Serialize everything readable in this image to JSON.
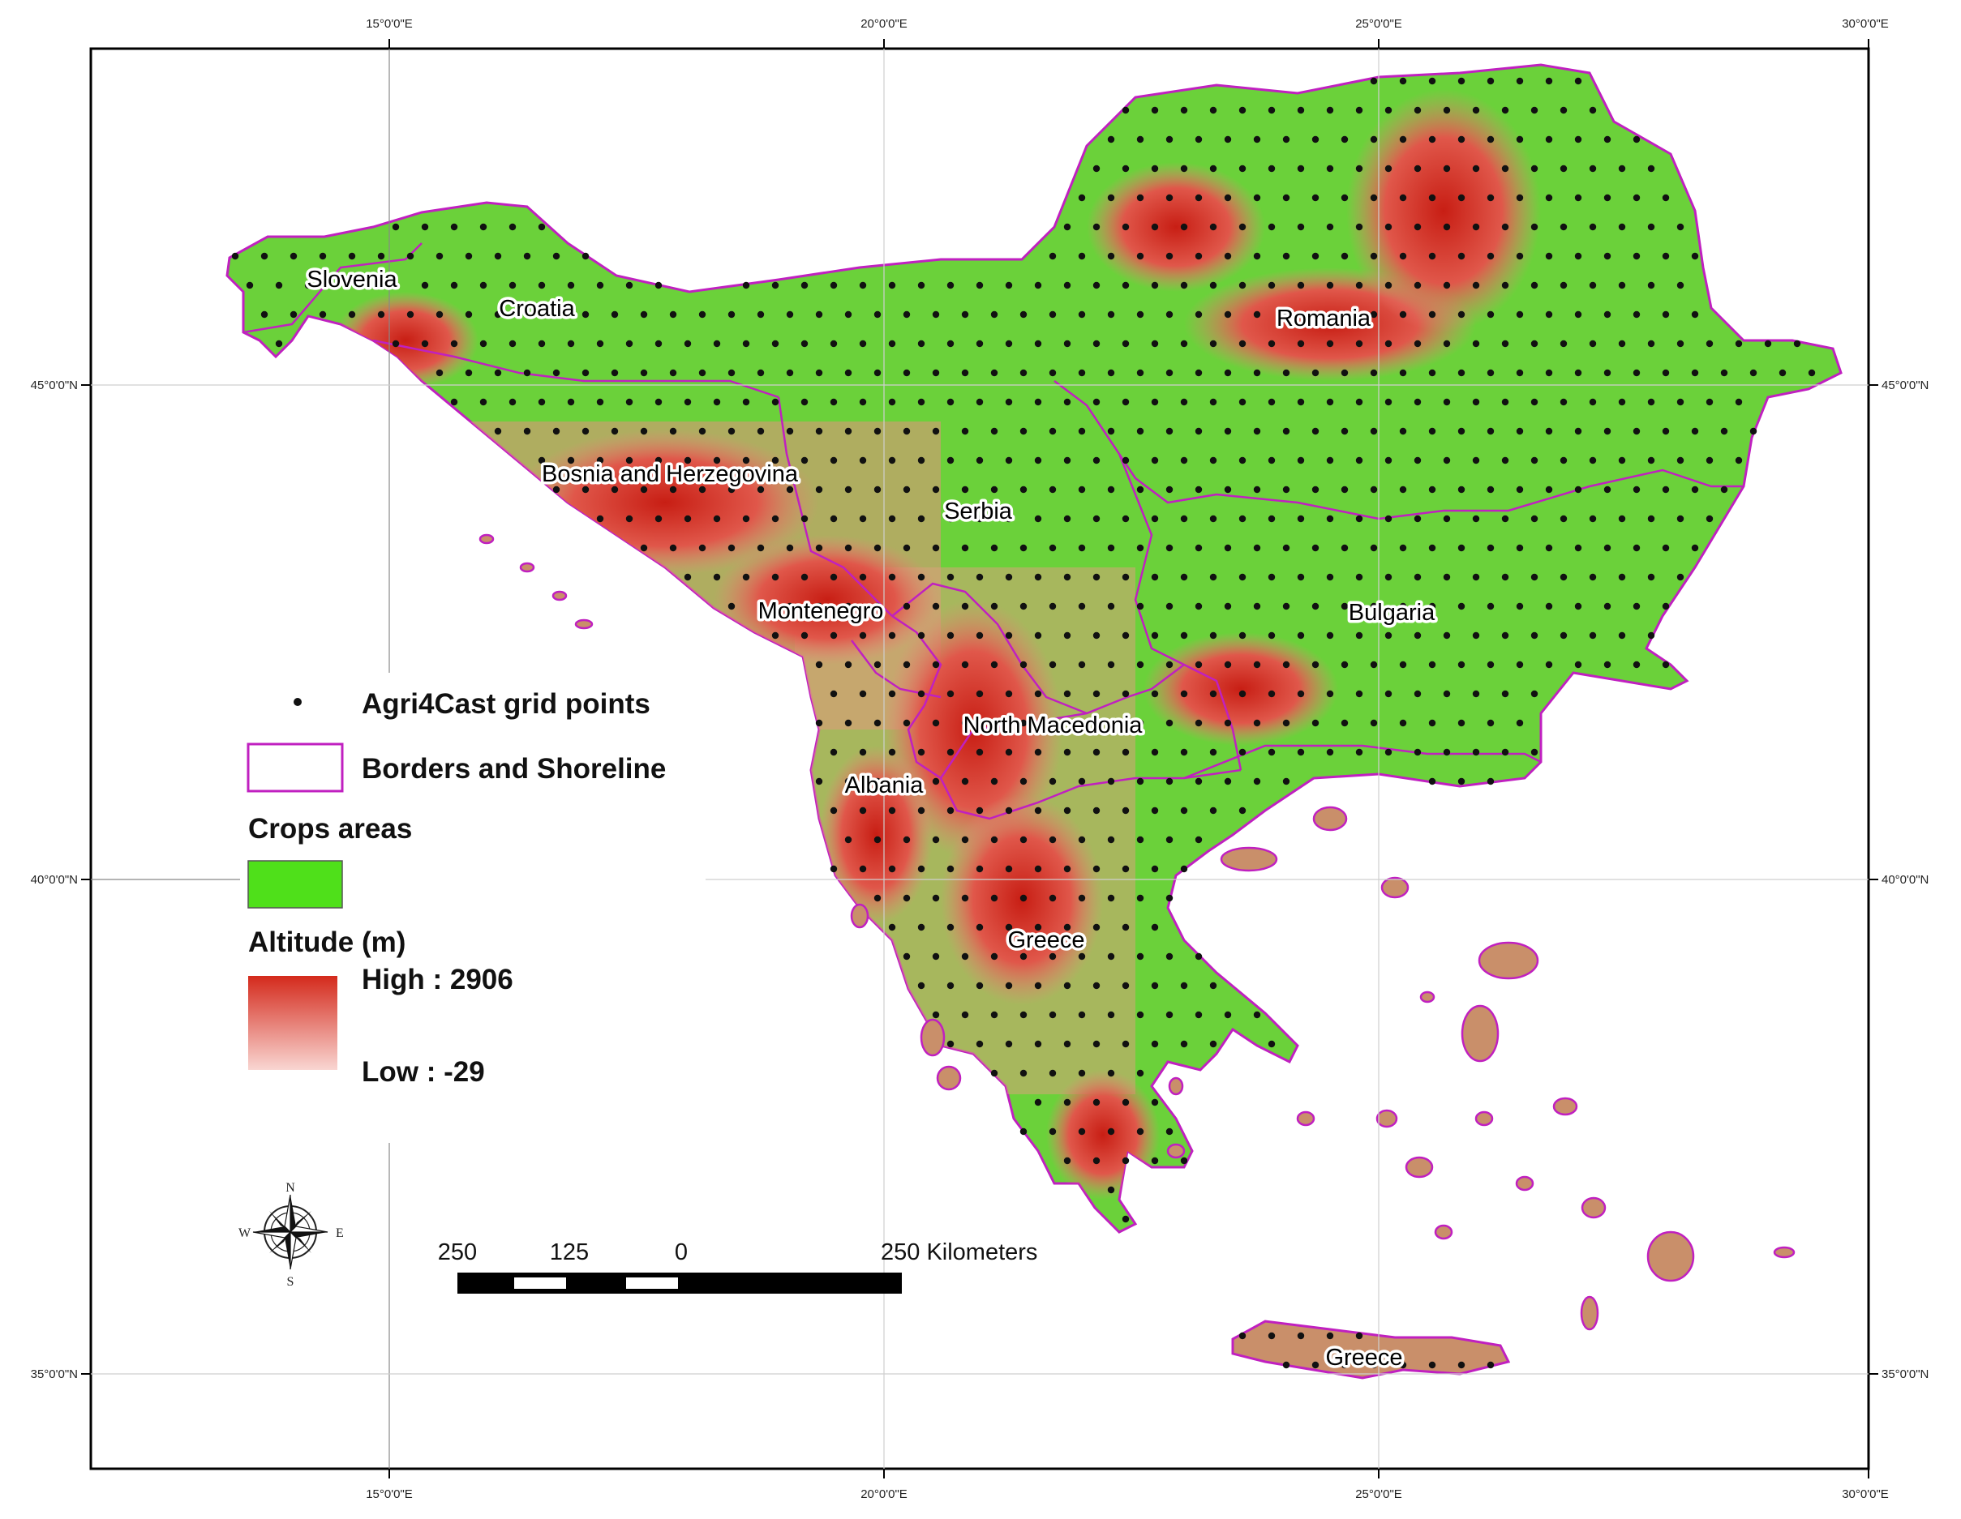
{
  "coordinates": {
    "top": [
      "15°0'0\"E",
      "20°0'0\"E",
      "25°0'0\"E",
      "30°0'0\"E"
    ],
    "bottom": [
      "15°0'0\"E",
      "20°0'0\"E",
      "25°0'0\"E",
      "30°0'0\"E"
    ],
    "left": [
      "45°0'0\"N",
      "40°0'0\"N",
      "35°0'0\"N"
    ],
    "right": [
      "45°0'0\"N",
      "40°0'0\"N",
      "35°0'0\"N"
    ]
  },
  "countries": {
    "slovenia": "Slovenia",
    "croatia": "Croatia",
    "romania": "Romania",
    "bosnia": "Bosnia and Herzegovina",
    "serbia": "Serbia",
    "montenegro": "Montenegro",
    "bulgaria": "Bulgaria",
    "north_macedonia": "North Macedonia",
    "albania": "Albania",
    "greece_mainland": "Greece",
    "greece_crete": "Greece"
  },
  "legend": {
    "grid_points": "Agri4Cast grid points",
    "borders": "Borders and Shoreline",
    "crops_title": "Crops areas",
    "altitude_title": "Altitude (m)",
    "altitude_high": "High : 2906",
    "altitude_low": "Low : -29"
  },
  "compass": {
    "n": "N",
    "s": "S",
    "e": "E",
    "w": "W"
  },
  "scale": {
    "l250": "250",
    "l125": "125",
    "l0": "0",
    "l250km": "250 Kilometers"
  },
  "colors": {
    "crops": "#4fe01a",
    "altitude_high": "#d42a1c",
    "altitude_low": "#f6c8c4",
    "borders": "#c020c0",
    "grid_point": "#111111"
  }
}
